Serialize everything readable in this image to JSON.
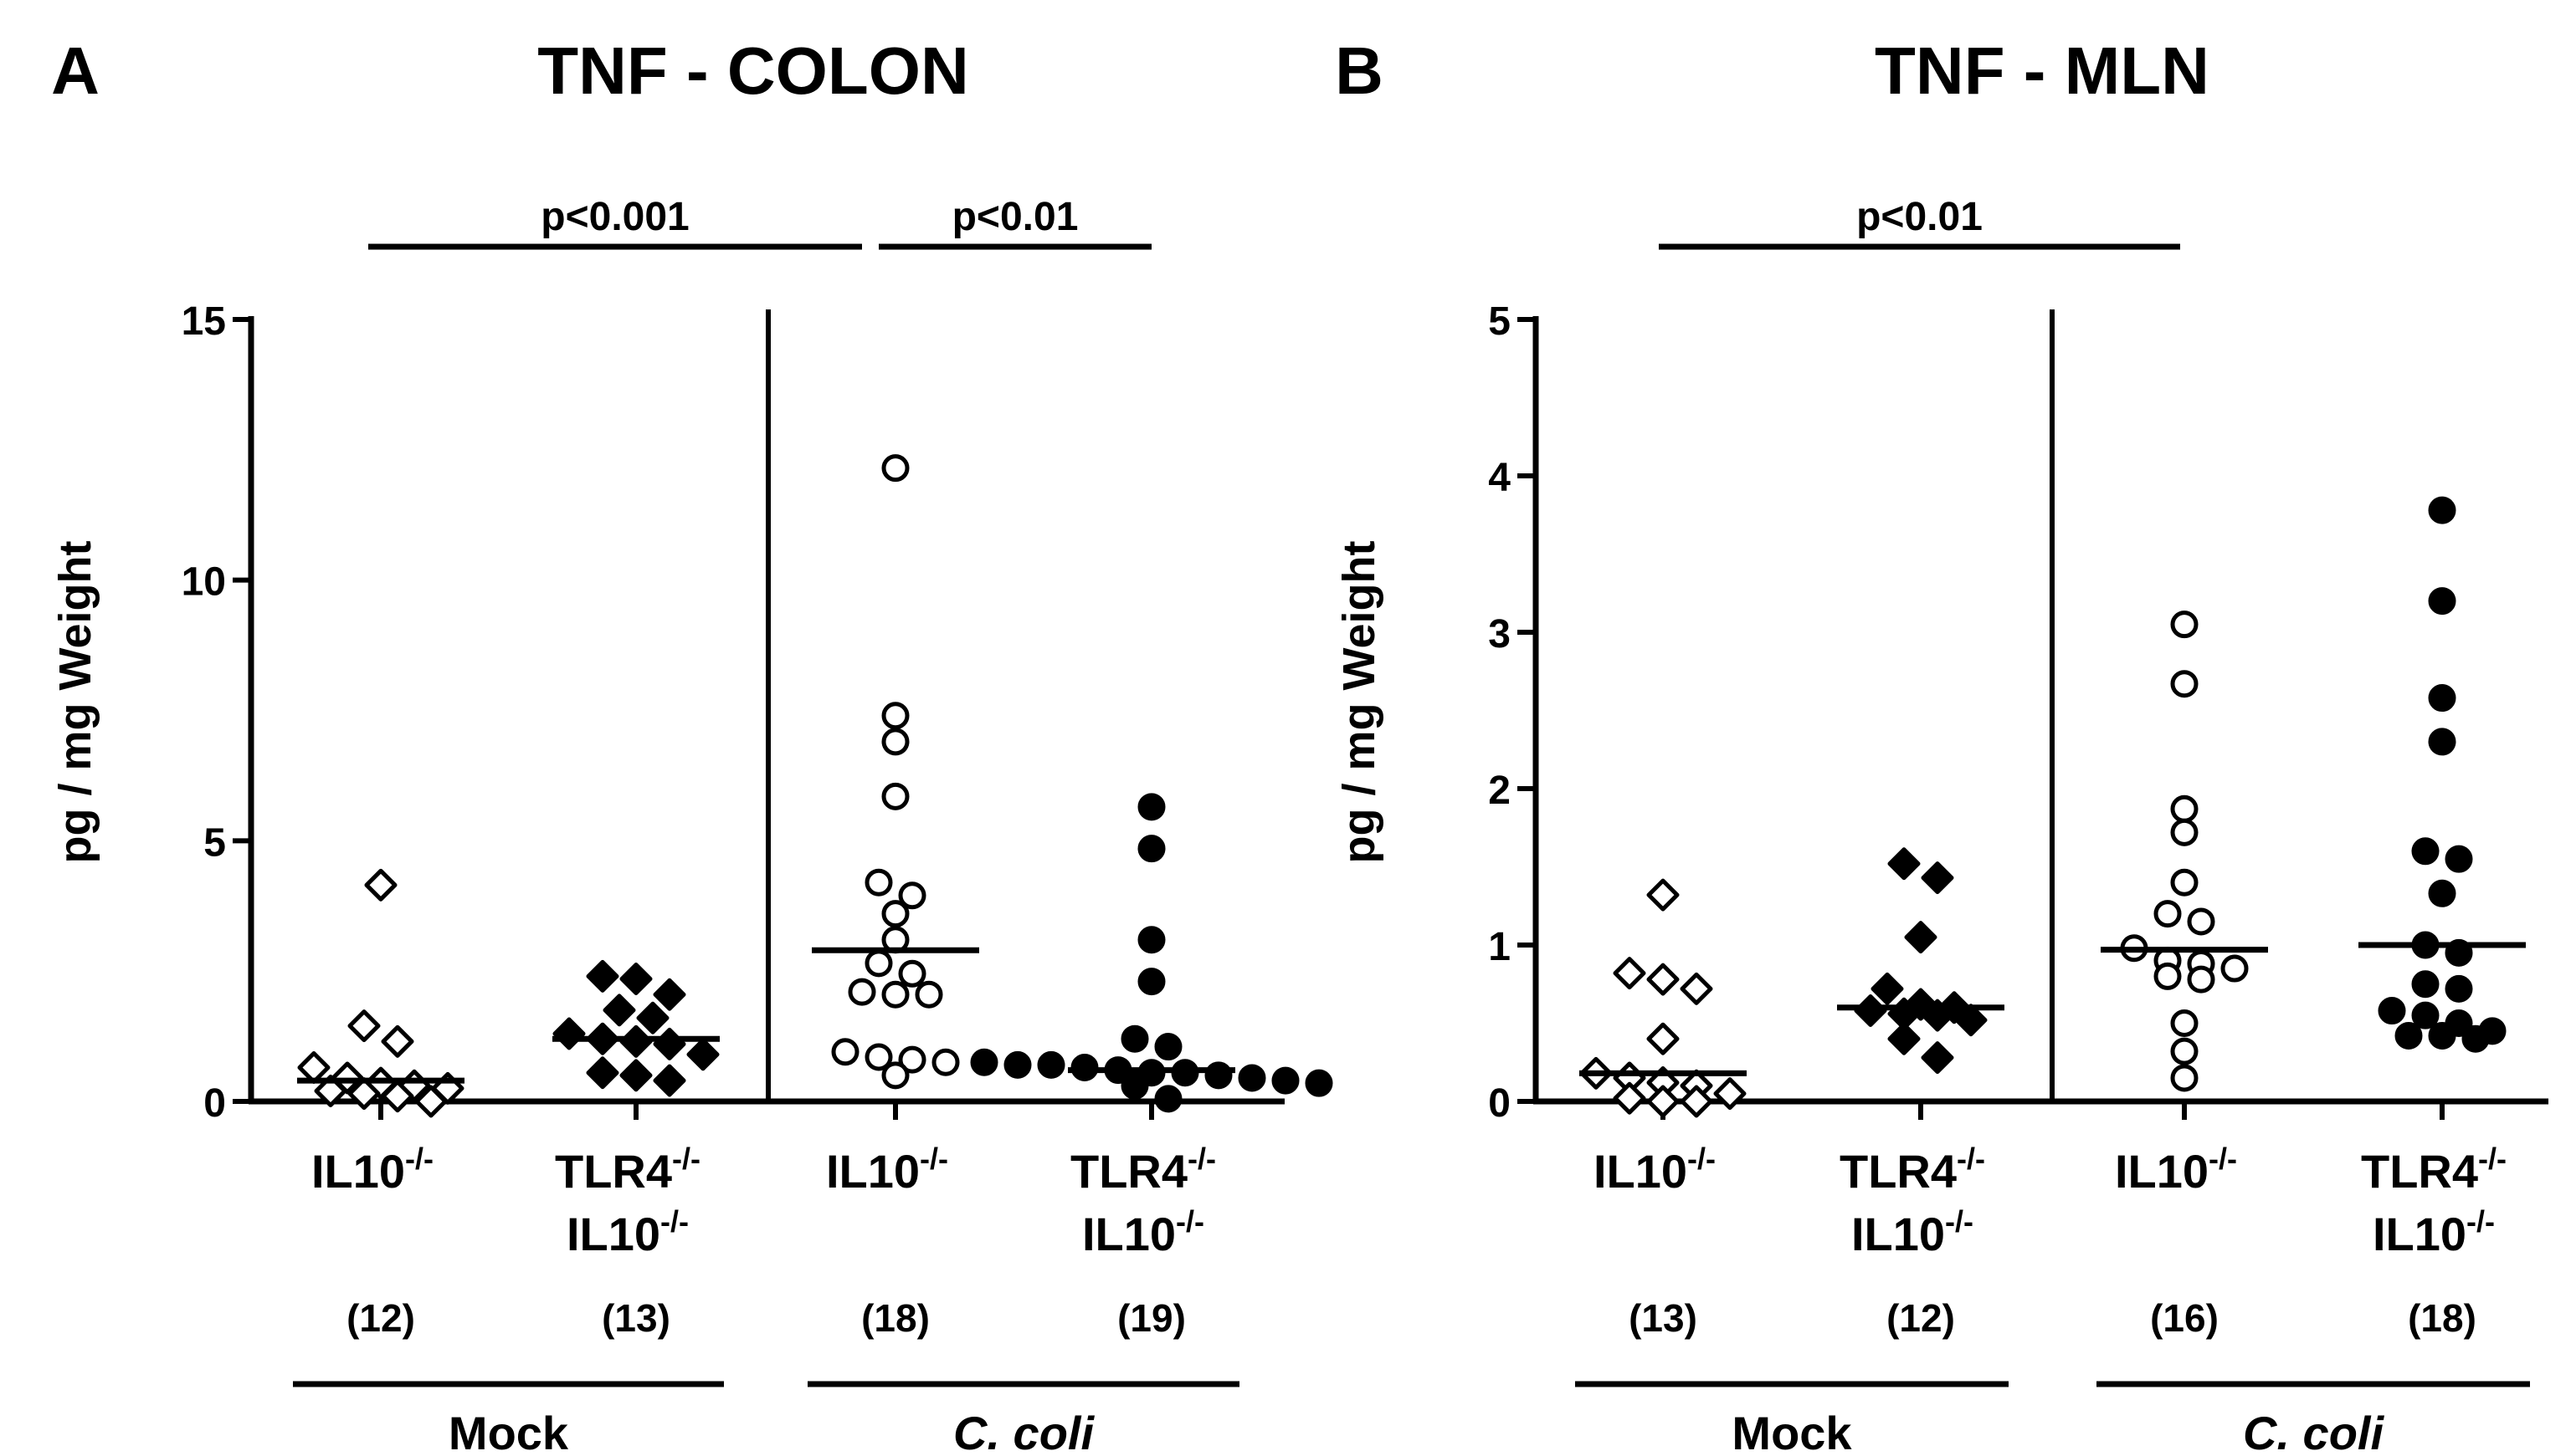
{
  "chart_data": [
    {
      "type": "scatter",
      "panel_label": "A",
      "title": "TNF - COLON",
      "ylabel": "pg / mg Weight",
      "ylim": [
        0,
        15
      ],
      "yticks": [
        "0",
        "5",
        "10",
        "15"
      ],
      "groups": [
        {
          "line1": "IL10",
          "sup1": "-/-",
          "line2": "",
          "sup2": "",
          "n": "(12)",
          "marker": "open-diamond",
          "median": 0.4,
          "values": [
            0.65,
            0.15,
            0.45,
            0.35,
            0.1,
            0.0,
            0.25,
            0.2,
            4.15,
            1.15,
            1.45,
            0.3
          ]
        },
        {
          "line1": "TLR4",
          "sup1": "-/-",
          "line2": "IL10",
          "sup2": "-/-",
          "n": "(13)",
          "marker": "filled-diamond",
          "median": 1.2,
          "values": [
            2.4,
            2.35,
            2.05,
            1.75,
            1.6,
            1.3,
            1.2,
            1.15,
            1.1,
            0.9,
            0.55,
            0.5,
            0.4
          ]
        },
        {
          "line1": "IL10",
          "sup1": "-/-",
          "line2": "",
          "sup2": "",
          "n": "(18)",
          "marker": "open-circle",
          "median": 2.9,
          "values": [
            12.15,
            7.4,
            6.9,
            5.85,
            4.2,
            3.95,
            3.6,
            3.1,
            2.65,
            2.45,
            2.1,
            2.05,
            2.05,
            0.95,
            0.85,
            0.8,
            0.75,
            0.5
          ]
        },
        {
          "line1": "TLR4",
          "sup1": "-/-",
          "line2": "IL10",
          "sup2": "-/-",
          "n": "(19)",
          "marker": "filled-circle",
          "median": 0.6,
          "values": [
            5.65,
            4.85,
            3.1,
            2.3,
            1.2,
            1.05,
            0.75,
            0.7,
            0.7,
            0.65,
            0.6,
            0.55,
            0.55,
            0.5,
            0.45,
            0.4,
            0.35,
            0.3,
            0.05
          ]
        }
      ],
      "significance": [
        {
          "label": "p<0.001",
          "from": 0,
          "to": 2
        },
        {
          "label": "p<0.01",
          "from": 2,
          "to": 3
        }
      ],
      "categories": [
        {
          "label": "Mock",
          "italic": false,
          "from": 0,
          "to": 1
        },
        {
          "label": "C. coli",
          "italic": true,
          "from": 2,
          "to": 3
        }
      ]
    },
    {
      "type": "scatter",
      "panel_label": "B",
      "title": "TNF - MLN",
      "ylabel": "pg / mg Weight",
      "ylim": [
        0,
        5
      ],
      "yticks": [
        "0",
        "1",
        "2",
        "3",
        "4",
        "5"
      ],
      "groups": [
        {
          "line1": "IL10",
          "sup1": "-/-",
          "line2": "",
          "sup2": "",
          "n": "(13)",
          "marker": "open-diamond",
          "median": 0.18,
          "values": [
            1.32,
            0.82,
            0.78,
            0.72,
            0.4,
            0.18,
            0.15,
            0.12,
            0.1,
            0.05,
            0.02,
            0.0,
            0.0
          ]
        },
        {
          "line1": "TLR4",
          "sup1": "-/-",
          "line2": "IL10",
          "sup2": "-/-",
          "n": "(12)",
          "marker": "filled-diamond",
          "median": 0.6,
          "values": [
            1.52,
            1.43,
            1.05,
            0.72,
            0.62,
            0.6,
            0.58,
            0.56,
            0.55,
            0.52,
            0.4,
            0.28
          ]
        },
        {
          "line1": "IL10",
          "sup1": "-/-",
          "line2": "",
          "sup2": "",
          "n": "(16)",
          "marker": "open-circle",
          "median": 0.97,
          "values": [
            3.05,
            2.67,
            1.87,
            1.72,
            1.4,
            1.2,
            1.15,
            0.98,
            0.9,
            0.88,
            0.85,
            0.8,
            0.78,
            0.5,
            0.32,
            0.15
          ]
        },
        {
          "line1": "TLR4",
          "sup1": "-/-",
          "line2": "IL10",
          "sup2": "-/-",
          "n": "(18)",
          "marker": "filled-circle",
          "median": 1.0,
          "values": [
            3.78,
            3.2,
            2.58,
            2.3,
            1.6,
            1.55,
            1.33,
            1.0,
            0.95,
            0.75,
            0.72,
            0.58,
            0.55,
            0.5,
            0.45,
            0.42,
            0.42,
            0.4
          ]
        }
      ],
      "significance": [
        {
          "label": "p<0.01",
          "from": 0,
          "to": 2
        }
      ],
      "categories": [
        {
          "label": "Mock",
          "italic": false,
          "from": 0,
          "to": 1
        },
        {
          "label": "C. coli",
          "italic": true,
          "from": 2,
          "to": 3
        }
      ]
    }
  ]
}
